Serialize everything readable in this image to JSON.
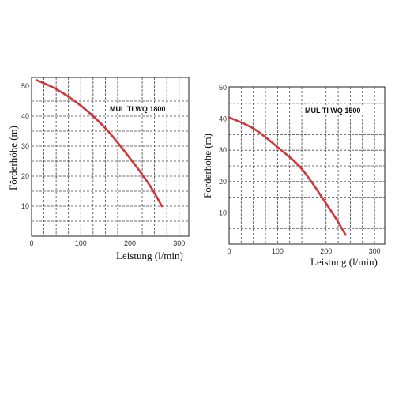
{
  "chart_data": [
    {
      "type": "line",
      "title": "MUL TI WQ 1800",
      "xlabel": "Leistung (l/min)",
      "ylabel": "Förderhöhe (m)",
      "xlim": [
        0,
        320
      ],
      "ylim": [
        0,
        50
      ],
      "xticks": [
        "0",
        "100",
        "200",
        "300"
      ],
      "yticks": [
        "10",
        "20",
        "30",
        "40",
        "50"
      ],
      "grid": true,
      "curve_color": "#d0353a",
      "series": [
        {
          "x": [
            10,
            50,
            100,
            150,
            200,
            240,
            265
          ],
          "y": [
            52,
            49,
            43.5,
            36,
            26,
            17,
            10
          ]
        }
      ]
    },
    {
      "type": "line",
      "title": "MUL TI WQ 1500",
      "xlabel": "Leistung (l/min)",
      "ylabel": "Förderhöhe (m)",
      "xlim": [
        0,
        320
      ],
      "ylim": [
        0,
        50
      ],
      "xticks": [
        "0",
        "100",
        "200",
        "300"
      ],
      "yticks": [
        "10",
        "20",
        "30",
        "40",
        "50"
      ],
      "grid": true,
      "curve_color": "#d0353a",
      "series": [
        {
          "x": [
            0,
            50,
            100,
            150,
            200,
            225,
            240
          ],
          "y": [
            40.5,
            37,
            31,
            24,
            13,
            7,
            3
          ]
        }
      ]
    }
  ]
}
